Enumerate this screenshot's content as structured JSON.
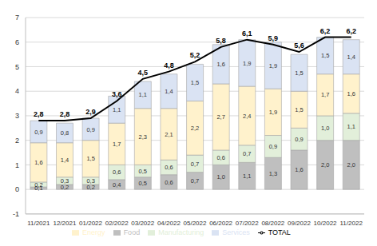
{
  "chart_data": {
    "type": "bar",
    "stacked": true,
    "grid": true,
    "legend": "bottom",
    "data_labels": true,
    "categories": [
      "11/2021",
      "12/2021",
      "01/2022",
      "02/2022",
      "03/2022",
      "04/2022",
      "05/2022",
      "06/2022",
      "07/2022",
      "08/2022",
      "09/2022",
      "10/2022",
      "11/2022"
    ],
    "ylim": [
      -1,
      7
    ],
    "yticks": [
      -1,
      0,
      1,
      2,
      3,
      4,
      5,
      6,
      7
    ],
    "series": [
      {
        "name": "Food",
        "type": "bar",
        "color": "#bfbfbf",
        "values": [
          0.1,
          0.2,
          0.2,
          0.4,
          0.5,
          0.6,
          0.7,
          1.0,
          1.1,
          1.3,
          1.6,
          2.0,
          2.0
        ],
        "value_labels": [
          "0,1",
          "0,2",
          "0,2",
          "0,4",
          "0,5",
          "0,6",
          "0,7",
          "1,0",
          "1,1",
          "1,3",
          "1,6",
          "2,0",
          "2,0"
        ]
      },
      {
        "name": "Manufacturing",
        "type": "bar",
        "color": "#e2efda",
        "values": [
          0.2,
          0.3,
          0.3,
          0.6,
          0.5,
          0.6,
          0.7,
          0.6,
          0.7,
          0.9,
          0.9,
          1.0,
          1.1
        ],
        "value_labels": [
          "0,2",
          "0,3",
          "0,3",
          "0,6",
          "0,5",
          "0,6",
          "0,7",
          "0,6",
          "0,7",
          "0,9",
          "0,9",
          "1,0",
          "1,1"
        ]
      },
      {
        "name": "Energy",
        "type": "bar",
        "color": "#fff2cc",
        "values": [
          1.6,
          1.4,
          1.5,
          1.7,
          2.3,
          2.1,
          2.2,
          2.7,
          2.4,
          1.9,
          1.5,
          1.7,
          1.6
        ],
        "value_labels": [
          "1,6",
          "1,4",
          "1,5",
          "1,7",
          "2,3",
          "2,1",
          "2,2",
          "2,7",
          "2,4",
          "1,9",
          "1,5",
          "1,7",
          "1,6"
        ]
      },
      {
        "name": "Services",
        "type": "bar",
        "color": "#dae3f3",
        "values": [
          0.9,
          0.8,
          0.9,
          1.1,
          1.1,
          1.4,
          1.5,
          1.6,
          1.9,
          1.9,
          1.5,
          1.5,
          1.4
        ],
        "value_labels": [
          "0,9",
          "0,8",
          "0,9",
          "1,1",
          "1,1",
          "1,4",
          "1,5",
          "1,6",
          "1,9",
          "1,9",
          "1,5",
          "1,5",
          "1,4"
        ]
      },
      {
        "name": "TOTAL",
        "type": "line",
        "color": "#000000",
        "values": [
          2.8,
          2.8,
          2.9,
          3.6,
          4.5,
          4.8,
          5.2,
          5.8,
          6.1,
          5.9,
          5.6,
          6.2,
          6.2
        ],
        "value_labels": [
          "2,8",
          "2,8",
          "2,9",
          "3,6",
          "4,5",
          "4,8",
          "5,2",
          "5,8",
          "6,1",
          "5,9",
          "5,6",
          "6,2",
          "6,2"
        ]
      }
    ]
  }
}
